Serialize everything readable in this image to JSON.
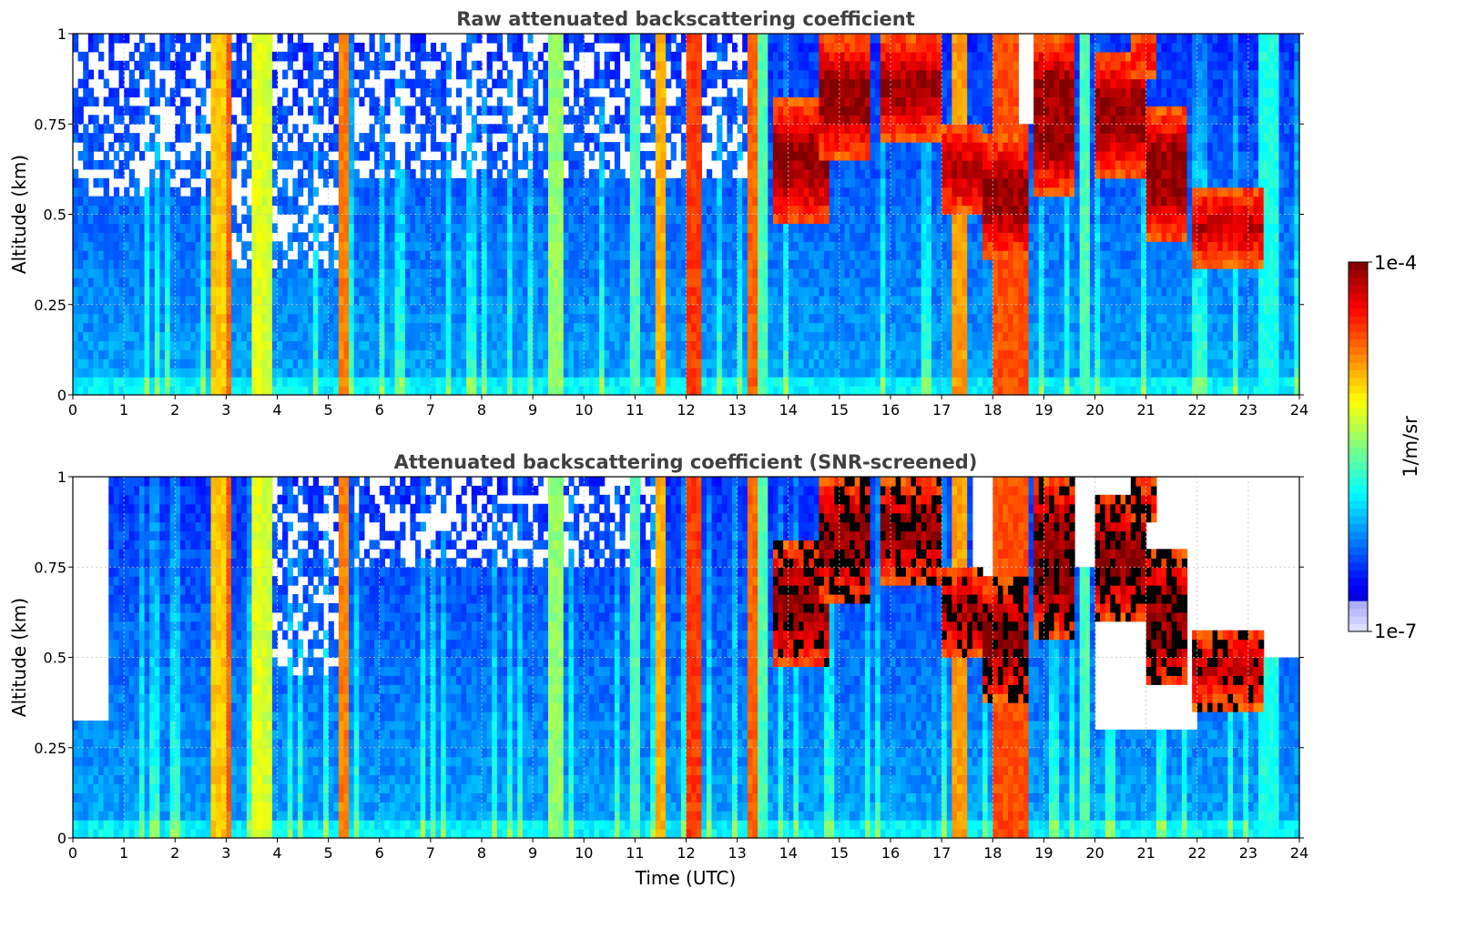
{
  "chart_data": [
    {
      "type": "heatmap",
      "title": "Raw attenuated backscattering coefficient",
      "xlabel": "",
      "ylabel": "Altitude (km)",
      "xlim": [
        0,
        24
      ],
      "ylim": [
        0,
        1
      ],
      "x_ticks": [
        "0",
        "1",
        "2",
        "3",
        "4",
        "5",
        "6",
        "7",
        "8",
        "9",
        "10",
        "11",
        "12",
        "13",
        "14",
        "15",
        "16",
        "17",
        "18",
        "19",
        "20",
        "21",
        "22",
        "23",
        "24"
      ],
      "y_ticks": [
        "0",
        "0.25",
        "0.5",
        "0.75",
        "1"
      ],
      "grid": true,
      "screened": false,
      "background_level": 0.25,
      "columns": [
        {
          "t0": 2.72,
          "t1": 2.95,
          "level": 0.68
        },
        {
          "t0": 2.95,
          "t1": 3.12,
          "level": 0.78
        },
        {
          "t0": 3.5,
          "t1": 3.65,
          "level": 0.6
        },
        {
          "t0": 3.75,
          "t1": 3.9,
          "level": 0.58
        },
        {
          "t0": 5.25,
          "t1": 5.42,
          "level": 0.75
        },
        {
          "t0": 9.3,
          "t1": 9.6,
          "level": 0.52
        },
        {
          "t0": 10.9,
          "t1": 11.05,
          "level": 0.45
        },
        {
          "t0": 11.45,
          "t1": 11.6,
          "level": 0.7
        },
        {
          "t0": 12.0,
          "t1": 12.25,
          "level": 0.82
        },
        {
          "t0": 13.25,
          "t1": 13.45,
          "level": 0.78
        },
        {
          "t0": 13.45,
          "t1": 13.6,
          "level": 0.45
        },
        {
          "t0": 17.25,
          "t1": 17.45,
          "level": 0.72
        },
        {
          "t0": 18.0,
          "t1": 18.65,
          "level": 0.8
        },
        {
          "t0": 19.7,
          "t1": 19.9,
          "level": 0.45
        },
        {
          "t0": 23.2,
          "t1": 23.6,
          "level": 0.4
        }
      ],
      "clouds": [
        {
          "t0": 13.7,
          "t1": 14.8,
          "base": 0.47,
          "top": 0.82
        },
        {
          "t0": 14.6,
          "t1": 15.6,
          "base": 0.65,
          "top": 1.0
        },
        {
          "t0": 15.8,
          "t1": 17.0,
          "base": 0.7,
          "top": 1.0
        },
        {
          "t0": 17.0,
          "t1": 17.8,
          "base": 0.5,
          "top": 0.75
        },
        {
          "t0": 17.8,
          "t1": 18.7,
          "base": 0.38,
          "top": 0.72
        },
        {
          "t0": 18.8,
          "t1": 19.6,
          "base": 0.55,
          "top": 1.0
        },
        {
          "t0": 20.0,
          "t1": 21.0,
          "base": 0.6,
          "top": 0.95
        },
        {
          "t0": 20.7,
          "t1": 21.2,
          "base": 0.88,
          "top": 1.0
        },
        {
          "t0": 21.0,
          "t1": 21.8,
          "base": 0.42,
          "top": 0.8
        },
        {
          "t0": 21.9,
          "t1": 23.3,
          "base": 0.36,
          "top": 0.58
        }
      ],
      "sparse_regions": [
        {
          "t0": 0.0,
          "t1": 2.7,
          "above": 0.55
        },
        {
          "t0": 3.1,
          "t1": 5.2,
          "above": 0.35
        },
        {
          "t0": 5.5,
          "t1": 13.5,
          "above": 0.6
        },
        {
          "t0": 18.5,
          "t1": 19.2,
          "above": 0.75
        }
      ],
      "empty_regions": [
        {
          "t0": 18.5,
          "t1": 19.2,
          "above": 0.75
        }
      ]
    },
    {
      "type": "heatmap",
      "title": "Attenuated backscattering coefficient (SNR-screened)",
      "xlabel": "Time (UTC)",
      "ylabel": "Altitude (km)",
      "xlim": [
        0,
        24
      ],
      "ylim": [
        0,
        1
      ],
      "x_ticks": [
        "0",
        "1",
        "2",
        "3",
        "4",
        "5",
        "6",
        "7",
        "8",
        "9",
        "10",
        "11",
        "12",
        "13",
        "14",
        "15",
        "16",
        "17",
        "18",
        "19",
        "20",
        "21",
        "22",
        "23",
        "24"
      ],
      "y_ticks": [
        "0",
        "0.25",
        "0.5",
        "0.75",
        "1"
      ],
      "grid": true,
      "screened": true,
      "background_level": 0.25,
      "columns": [
        {
          "t0": 2.72,
          "t1": 2.95,
          "level": 0.68
        },
        {
          "t0": 2.95,
          "t1": 3.12,
          "level": 0.78
        },
        {
          "t0": 3.5,
          "t1": 3.65,
          "level": 0.6
        },
        {
          "t0": 3.75,
          "t1": 3.9,
          "level": 0.58
        },
        {
          "t0": 5.25,
          "t1": 5.42,
          "level": 0.75
        },
        {
          "t0": 9.3,
          "t1": 9.6,
          "level": 0.52
        },
        {
          "t0": 10.9,
          "t1": 11.05,
          "level": 0.45
        },
        {
          "t0": 11.45,
          "t1": 11.6,
          "level": 0.7
        },
        {
          "t0": 12.0,
          "t1": 12.25,
          "level": 0.82
        },
        {
          "t0": 13.25,
          "t1": 13.45,
          "level": 0.78
        },
        {
          "t0": 13.45,
          "t1": 13.6,
          "level": 0.45
        },
        {
          "t0": 17.25,
          "t1": 17.45,
          "level": 0.72
        },
        {
          "t0": 18.0,
          "t1": 18.65,
          "level": 0.8
        },
        {
          "t0": 19.7,
          "t1": 19.9,
          "level": 0.45
        },
        {
          "t0": 23.2,
          "t1": 23.6,
          "level": 0.4
        }
      ],
      "clouds": [
        {
          "t0": 13.7,
          "t1": 14.8,
          "base": 0.47,
          "top": 0.82
        },
        {
          "t0": 14.6,
          "t1": 15.6,
          "base": 0.65,
          "top": 1.0
        },
        {
          "t0": 15.8,
          "t1": 17.0,
          "base": 0.7,
          "top": 1.0
        },
        {
          "t0": 17.0,
          "t1": 17.8,
          "base": 0.5,
          "top": 0.75
        },
        {
          "t0": 17.8,
          "t1": 18.7,
          "base": 0.38,
          "top": 0.72
        },
        {
          "t0": 18.8,
          "t1": 19.6,
          "base": 0.55,
          "top": 1.0
        },
        {
          "t0": 20.0,
          "t1": 21.0,
          "base": 0.6,
          "top": 0.95
        },
        {
          "t0": 20.7,
          "t1": 21.2,
          "base": 0.88,
          "top": 1.0
        },
        {
          "t0": 21.0,
          "t1": 21.8,
          "base": 0.42,
          "top": 0.8
        },
        {
          "t0": 21.9,
          "t1": 23.3,
          "base": 0.36,
          "top": 0.58
        }
      ],
      "sparse_regions": [
        {
          "t0": 3.9,
          "t1": 5.2,
          "above": 0.45
        },
        {
          "t0": 5.5,
          "t1": 11.4,
          "above": 0.75
        }
      ],
      "empty_regions": [
        {
          "t0": 0.0,
          "t1": 0.7,
          "above": 0.33
        },
        {
          "t0": 17.6,
          "t1": 18.0,
          "above": 0.72
        },
        {
          "t0": 19.3,
          "t1": 20.0,
          "above": 0.75
        },
        {
          "t0": 20.0,
          "t1": 22.0,
          "above": 0.29
        },
        {
          "t0": 22.0,
          "t1": 23.0,
          "above": 0.55
        },
        {
          "t0": 23.0,
          "t1": 24.0,
          "above": 0.5
        }
      ]
    }
  ],
  "colorbar": {
    "max_label": "1e-4",
    "min_label": "1e-7",
    "label": "1/m/sr",
    "colormap": "jet"
  }
}
